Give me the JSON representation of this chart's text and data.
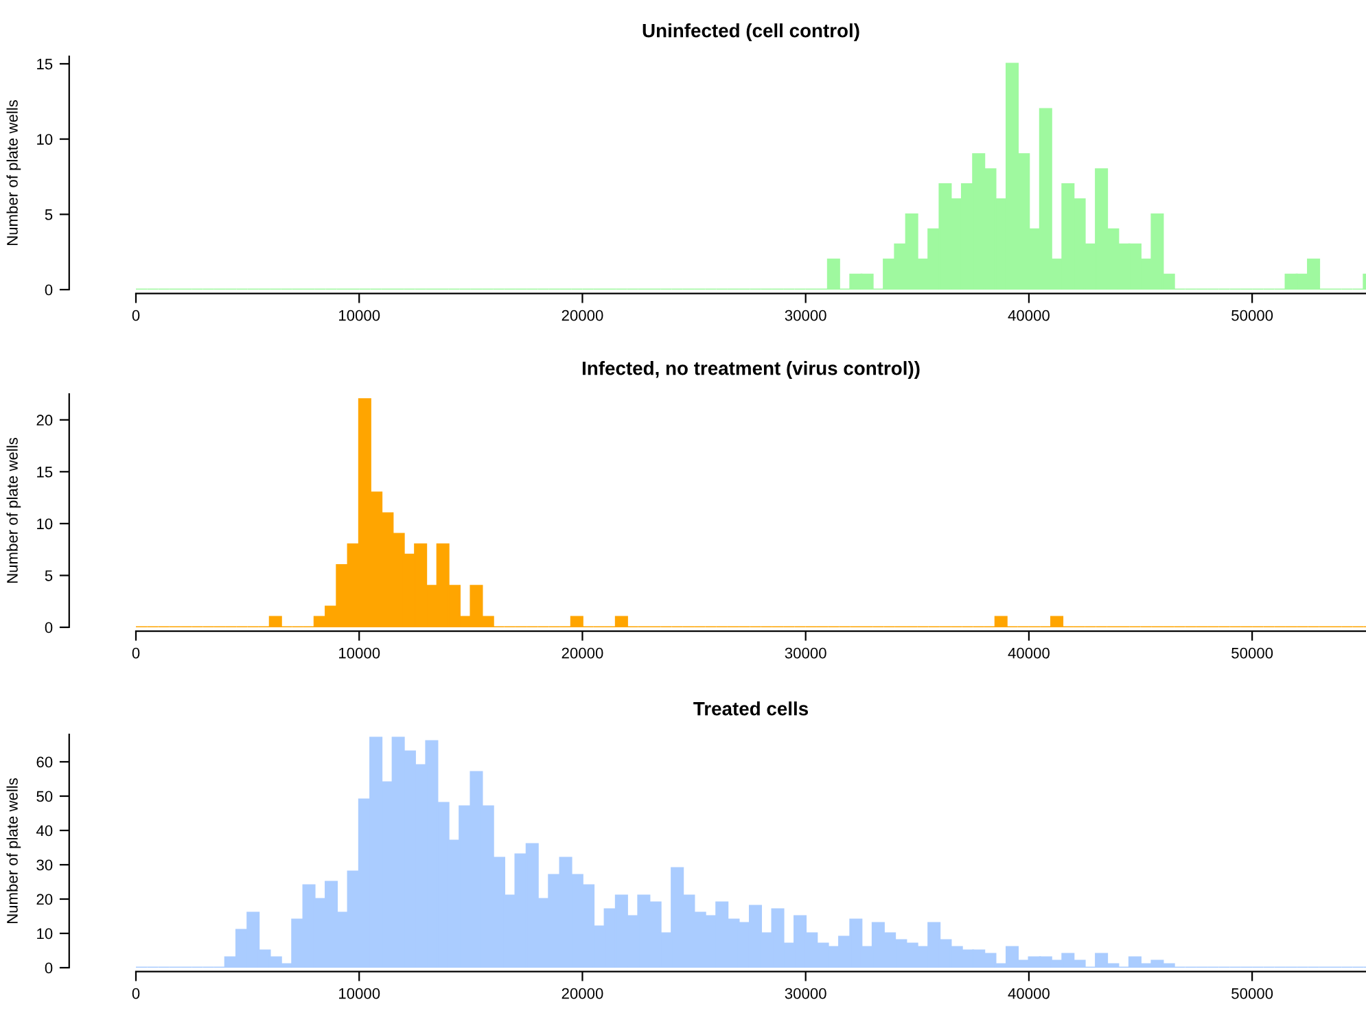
{
  "chart_data": [
    {
      "type": "histogram",
      "title": "Uninfected (cell control)",
      "ylabel": "Number of plate wells",
      "color": "#9ff99f",
      "bins": [
        0,
        500,
        1000,
        1500,
        2000,
        2500,
        3000,
        3500,
        4000,
        4500,
        5000,
        5500,
        6000,
        6500,
        7000,
        7500,
        8000,
        8500,
        9000,
        9500,
        10000,
        10500,
        11000,
        11500,
        12000,
        12500,
        13000,
        13500,
        14000,
        14500,
        15000,
        15500,
        16000,
        16500,
        17000,
        17500,
        18000,
        18500,
        19000,
        19500,
        20000,
        20500,
        21000,
        21500,
        22000,
        22500,
        23000,
        23500,
        24000,
        24500,
        25000,
        25500,
        26000,
        26500,
        27000,
        27500,
        28000,
        28500,
        29000,
        29500,
        30000,
        30500,
        31000,
        31500,
        32000,
        32500,
        33000,
        33500,
        34000,
        34500,
        35000,
        35500,
        36000,
        36500,
        37000,
        37500,
        38000,
        38500,
        39000,
        39500,
        40000,
        40500,
        41000,
        41500,
        42000,
        42500,
        43000,
        43500,
        44000,
        44500,
        45000,
        45500,
        46000,
        46500,
        47000,
        47500,
        48000,
        48500,
        49000,
        49500,
        50000,
        50500,
        51000,
        51500,
        52000,
        52500,
        53000,
        53500,
        54000,
        54500,
        55000,
        55500
      ],
      "values": [
        0,
        0,
        0,
        0,
        0,
        0,
        0,
        0,
        0,
        0,
        0,
        0,
        0,
        0,
        0,
        0,
        0,
        0,
        0,
        0,
        0,
        0,
        0,
        0,
        0,
        0,
        0,
        0,
        0,
        0,
        0,
        0,
        0,
        0,
        0,
        0,
        0,
        0,
        0,
        0,
        0,
        0,
        0,
        0,
        0,
        0,
        0,
        0,
        0,
        0,
        0,
        0,
        0,
        0,
        0,
        0,
        0,
        0,
        0,
        0,
        0,
        0,
        2,
        0,
        1,
        1,
        0,
        2,
        3,
        5,
        2,
        4,
        7,
        6,
        7,
        9,
        8,
        6,
        15,
        9,
        4,
        12,
        2,
        7,
        6,
        3,
        8,
        4,
        3,
        3,
        2,
        5,
        1,
        0,
        0,
        0,
        0,
        0,
        0,
        0,
        0,
        0,
        0,
        1,
        1,
        2,
        0,
        0,
        0,
        0,
        1
      ],
      "xlim": [
        0,
        55100
      ],
      "xticks": [
        0,
        10000,
        20000,
        30000,
        40000,
        50000
      ],
      "ylim": [
        0,
        15.5
      ],
      "yticks": [
        0,
        5,
        10,
        15
      ],
      "grid": false,
      "legend": false
    },
    {
      "type": "histogram",
      "title": "Infected, no treatment (virus control))",
      "ylabel": "Number of plate wells",
      "color": "#ffa500",
      "bins": [
        0,
        500,
        1000,
        1500,
        2000,
        2500,
        3000,
        3500,
        4000,
        4500,
        5000,
        5500,
        6000,
        6500,
        7000,
        7500,
        8000,
        8500,
        9000,
        9500,
        10000,
        10500,
        11000,
        11500,
        12000,
        12500,
        13000,
        13500,
        14000,
        14500,
        15000,
        15500,
        16000,
        16500,
        17000,
        17500,
        18000,
        18500,
        19000,
        19500,
        20000,
        20500,
        21000,
        21500,
        22000,
        22500,
        23000,
        23500,
        24000,
        24500,
        25000,
        25500,
        26000,
        26500,
        27000,
        27500,
        28000,
        28500,
        29000,
        29500,
        30000,
        30500,
        31000,
        31500,
        32000,
        32500,
        33000,
        33500,
        34000,
        34500,
        35000,
        35500,
        36000,
        36500,
        37000,
        37500,
        38000,
        38500,
        39000,
        39500,
        40000,
        40500,
        41000,
        41500,
        42000,
        42500,
        43000,
        43500,
        44000,
        44500,
        45000,
        45500,
        46000,
        46500,
        47000,
        47500,
        48000,
        48500,
        49000,
        49500,
        50000,
        50500,
        51000,
        51500,
        52000,
        52500,
        53000,
        53500,
        54000,
        54500,
        55000,
        55500
      ],
      "values": [
        0,
        0,
        0,
        0,
        0,
        0,
        0,
        0,
        0,
        0,
        0,
        0,
        1,
        0,
        0,
        0,
        1,
        2,
        6,
        8,
        22,
        13,
        11,
        9,
        7,
        8,
        4,
        8,
        4,
        1,
        4,
        1,
        0,
        0,
        0,
        0,
        0,
        0,
        0,
        1,
        0,
        0,
        0,
        1,
        0,
        0,
        0,
        0,
        0,
        0,
        0,
        0,
        0,
        0,
        0,
        0,
        0,
        0,
        0,
        0,
        0,
        0,
        0,
        0,
        0,
        0,
        0,
        0,
        0,
        0,
        0,
        0,
        0,
        0,
        0,
        0,
        0,
        1,
        0,
        0,
        0,
        0,
        1,
        0,
        0,
        0,
        0,
        0,
        0,
        0,
        0,
        0,
        0,
        0,
        0,
        0,
        0,
        0,
        0,
        0,
        0,
        0,
        0,
        0,
        0,
        0,
        0,
        0,
        0,
        0,
        0
      ],
      "xlim": [
        0,
        55100
      ],
      "xticks": [
        0,
        10000,
        20000,
        30000,
        40000,
        50000
      ],
      "ylim": [
        0,
        22.5
      ],
      "yticks": [
        0,
        5,
        10,
        15,
        20
      ],
      "grid": false,
      "legend": false
    },
    {
      "type": "histogram",
      "title": "Treated cells",
      "ylabel": "Number of plate wells",
      "color": "#aaccff",
      "bins": [
        0,
        500,
        1000,
        1500,
        2000,
        2500,
        3000,
        3500,
        4000,
        4500,
        5000,
        5500,
        6000,
        6500,
        7000,
        7500,
        8000,
        8500,
        9000,
        9500,
        10000,
        10500,
        11000,
        11500,
        12000,
        12500,
        13000,
        13500,
        14000,
        14500,
        15000,
        15500,
        16000,
        16500,
        17000,
        17500,
        18000,
        18500,
        19000,
        19500,
        20000,
        20500,
        21000,
        21500,
        22000,
        22500,
        23000,
        23500,
        24000,
        24500,
        25000,
        25500,
        26000,
        26500,
        27000,
        27500,
        28000,
        28500,
        29000,
        29500,
        30000,
        30500,
        31000,
        31500,
        32000,
        32500,
        33000,
        33500,
        34000,
        34500,
        35000,
        35500,
        36000,
        36500,
        37000,
        37500,
        38000,
        38500,
        39000,
        39500,
        40000,
        40500,
        41000,
        41500,
        42000,
        42500,
        43000,
        43500,
        44000,
        44500,
        45000,
        45500,
        46000,
        46500,
        47000,
        47500,
        48000,
        48500,
        49000,
        49500,
        50000,
        50500,
        51000,
        51500,
        52000,
        52500,
        53000,
        53500,
        54000,
        54500,
        55000,
        55500
      ],
      "values": [
        0,
        0,
        0,
        0,
        0,
        0,
        0,
        0,
        3,
        11,
        16,
        5,
        3,
        1,
        14,
        24,
        20,
        25,
        16,
        28,
        49,
        67,
        54,
        67,
        63,
        59,
        66,
        48,
        37,
        47,
        57,
        47,
        32,
        21,
        33,
        36,
        20,
        27,
        32,
        27,
        24,
        12,
        17,
        21,
        15,
        21,
        19,
        10,
        29,
        21,
        16,
        15,
        19,
        14,
        13,
        18,
        10,
        17,
        7,
        15,
        10,
        7,
        6,
        9,
        14,
        6,
        13,
        10,
        8,
        7,
        6,
        13,
        8,
        6,
        5,
        5,
        4,
        1,
        6,
        2,
        3,
        3,
        2,
        4,
        2,
        0,
        4,
        1,
        0,
        3,
        1,
        2,
        1,
        0,
        0,
        0,
        0,
        0,
        0,
        0,
        0,
        0,
        0,
        0,
        0,
        0,
        0,
        0,
        0,
        0,
        0
      ],
      "xlim": [
        0,
        55100
      ],
      "xticks": [
        0,
        10000,
        20000,
        30000,
        40000,
        50000
      ],
      "ylim": [
        0,
        68
      ],
      "yticks": [
        0,
        10,
        20,
        30,
        40,
        50,
        60
      ],
      "grid": false,
      "legend": false
    }
  ]
}
